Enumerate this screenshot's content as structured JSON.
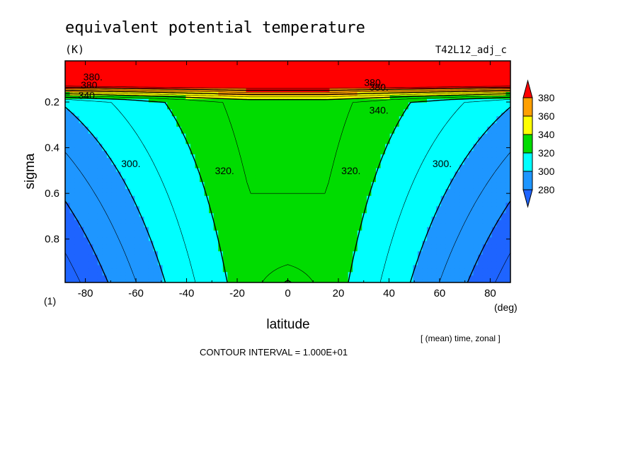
{
  "chart_data": {
    "type": "heatmap",
    "title": "equivalent potential temperature",
    "units": "(K)",
    "experiment": "T42L12_adj_c",
    "xlabel": "latitude",
    "ylabel": "sigma",
    "x_unit": "(deg)",
    "y_unit": "(1)",
    "xlim": [
      -88,
      88
    ],
    "ylim": [
      0.02,
      0.99
    ],
    "y_inverted": true,
    "xticks": [
      -80,
      -60,
      -40,
      -20,
      0,
      20,
      40,
      60,
      80
    ],
    "xtick_labels": [
      "-80",
      "-60",
      "-40",
      "-20",
      "0",
      "20",
      "40",
      "60",
      "80"
    ],
    "yticks": [
      0.2,
      0.4,
      0.6,
      0.8
    ],
    "ytick_labels": [
      "0.2",
      "0.4",
      "0.6",
      "0.8"
    ],
    "averaging_note": "[ (mean) time, zonal ]",
    "contour_interval_text": "CONTOUR INTERVAL = 1.000E+01",
    "contour_interval": 10,
    "colorbar": {
      "levels": [
        280,
        300,
        320,
        340,
        360,
        380
      ],
      "labels": [
        "380",
        "360",
        "340",
        "320",
        "300",
        "280"
      ],
      "colors": [
        "#1e64ff",
        "#1e96ff",
        "#00ffff",
        "#00dc00",
        "#ffff00",
        "#ffa000",
        "#ff0000"
      ]
    },
    "contour_labels": [
      {
        "text": "380.",
        "lat": -77,
        "sigma": 0.09
      },
      {
        "text": "380.",
        "lat": -78,
        "sigma": 0.125
      },
      {
        "text": "340.",
        "lat": -79,
        "sigma": 0.17
      },
      {
        "text": "300.",
        "lat": -62,
        "sigma": 0.47
      },
      {
        "text": "320.",
        "lat": -25,
        "sigma": 0.5
      },
      {
        "text": "380.",
        "lat": 34,
        "sigma": 0.115
      },
      {
        "text": "380.",
        "lat": 36,
        "sigma": 0.135
      },
      {
        "text": "340.",
        "lat": 36,
        "sigma": 0.235
      },
      {
        "text": "320.",
        "lat": 25,
        "sigma": 0.5
      },
      {
        "text": "300.",
        "lat": 61,
        "sigma": 0.47
      }
    ],
    "grid": false
  }
}
